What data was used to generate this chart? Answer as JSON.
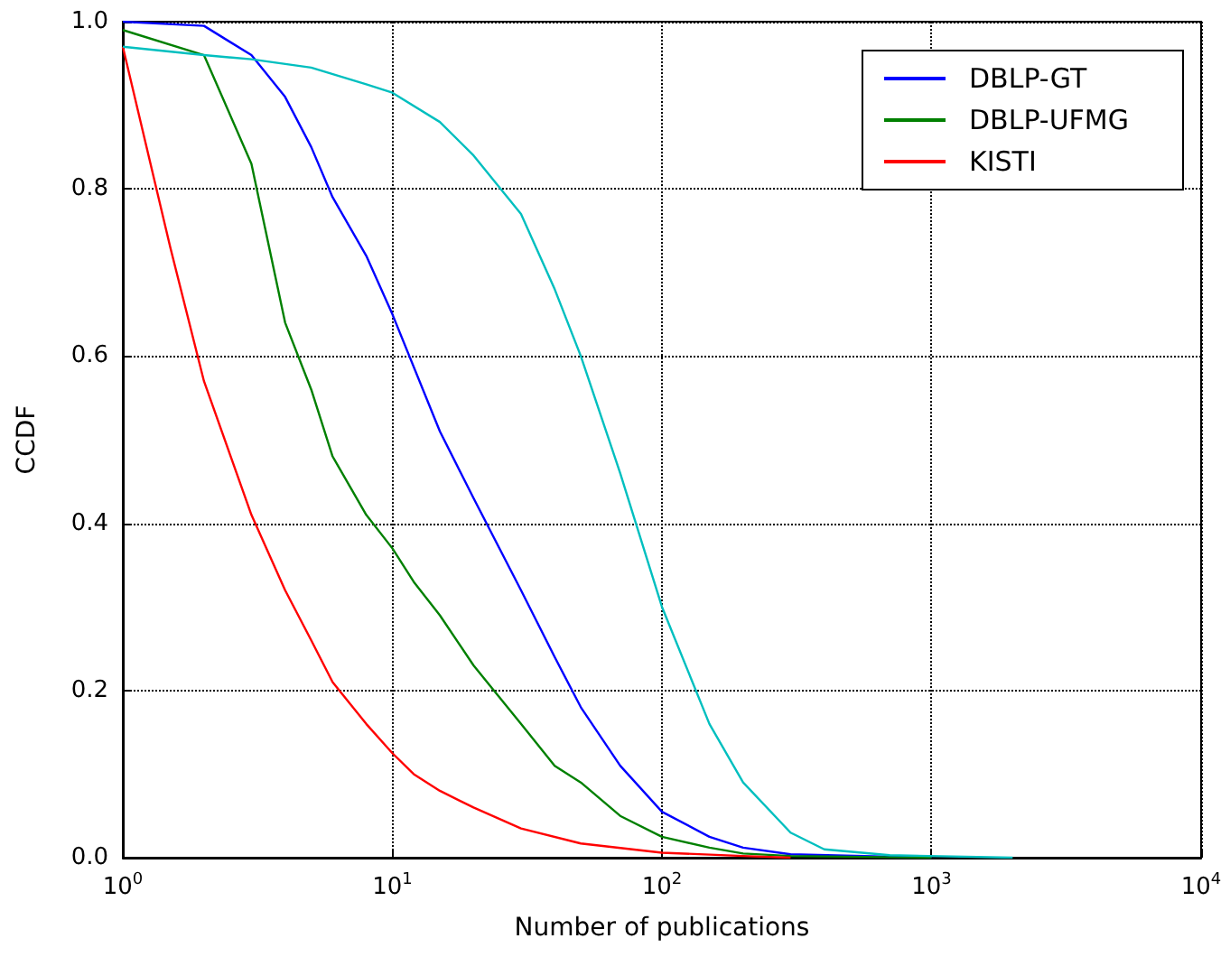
{
  "chart_data": {
    "type": "line",
    "xlabel": "Number of publications",
    "ylabel": "CCDF",
    "log": "x",
    "grid": true,
    "legend": "top right",
    "xlim": [
      1,
      10000
    ],
    "xticks": [
      {
        "value": 1,
        "label": "10$^{0}$"
      },
      {
        "value": 10,
        "label": "10$^{1}$"
      },
      {
        "value": 100,
        "label": "10$^{2}$"
      },
      {
        "value": 1000,
        "label": "10$^{3}$"
      },
      {
        "value": 10000,
        "label": "10$^{4}$"
      }
    ],
    "ylim": [
      0,
      1
    ],
    "yticks": [
      {
        "value": 0,
        "label": "0.0"
      },
      {
        "value": 0.2,
        "label": "0.2"
      },
      {
        "value": 0.4,
        "label": "0.4"
      },
      {
        "value": 0.6,
        "label": "0.6"
      },
      {
        "value": 0.8,
        "label": "0.8"
      },
      {
        "value": 1,
        "label": "1.0"
      }
    ],
    "series": [
      {
        "name": "DBLP-GT",
        "color": "#0000ff",
        "x": [
          1,
          2,
          3,
          4,
          5,
          6,
          8,
          10,
          15,
          20,
          30,
          40,
          50,
          70,
          100,
          150,
          200,
          300,
          1000
        ],
        "values": [
          1.0,
          0.995,
          0.96,
          0.91,
          0.85,
          0.79,
          0.72,
          0.65,
          0.51,
          0.43,
          0.32,
          0.24,
          0.18,
          0.11,
          0.055,
          0.025,
          0.012,
          0.004,
          0
        ]
      },
      {
        "name": "DBLP-UFMG",
        "color": "#008000",
        "x": [
          1,
          2,
          3,
          4,
          5,
          6,
          8,
          10,
          12,
          15,
          20,
          30,
          40,
          50,
          70,
          100,
          150,
          200,
          300,
          1000
        ],
        "values": [
          0.99,
          0.96,
          0.83,
          0.64,
          0.56,
          0.48,
          0.41,
          0.37,
          0.33,
          0.29,
          0.23,
          0.16,
          0.11,
          0.09,
          0.05,
          0.025,
          0.012,
          0.005,
          0.002,
          0
        ]
      },
      {
        "name": "KISTI",
        "color": "#ff0000",
        "x": [
          1,
          1.5,
          2,
          3,
          4,
          5,
          6,
          8,
          10,
          12,
          15,
          20,
          30,
          50,
          100,
          200,
          300
        ],
        "values": [
          0.97,
          0.73,
          0.57,
          0.41,
          0.32,
          0.26,
          0.21,
          0.16,
          0.125,
          0.1,
          0.08,
          0.06,
          0.035,
          0.017,
          0.006,
          0.002,
          0
        ]
      },
      {
        "color": "#00bfbf",
        "x": [
          1,
          2,
          3,
          5,
          8,
          10,
          15,
          20,
          30,
          40,
          50,
          70,
          100,
          150,
          200,
          300,
          400,
          700,
          2000
        ],
        "values": [
          0.97,
          0.96,
          0.955,
          0.945,
          0.925,
          0.915,
          0.88,
          0.84,
          0.77,
          0.68,
          0.6,
          0.46,
          0.3,
          0.16,
          0.09,
          0.03,
          0.01,
          0.003,
          0
        ]
      }
    ]
  }
}
